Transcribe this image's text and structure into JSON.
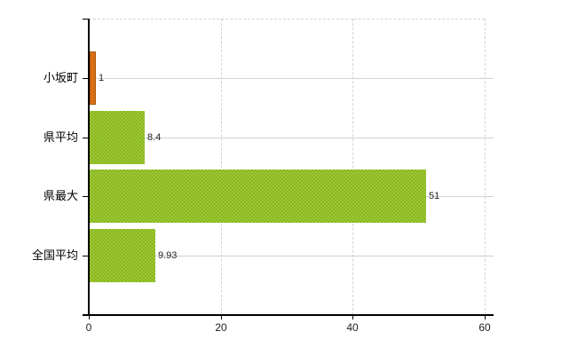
{
  "chart_data": {
    "type": "bar",
    "orientation": "horizontal",
    "title": "",
    "categories": [
      "小坂町",
      "県平均",
      "県最大",
      "全国平均"
    ],
    "series": [
      {
        "name": "value",
        "values": [
          1,
          8.4,
          51,
          9.93
        ]
      }
    ],
    "value_labels": [
      "1",
      "8.4",
      "51",
      "9.93"
    ],
    "bar_color_keys": [
      "orange",
      "green",
      "green",
      "green"
    ],
    "x_ticks": [
      0,
      20,
      40,
      60
    ],
    "x_tick_labels": [
      "0",
      "20",
      "40",
      "60"
    ],
    "xlim": [
      0,
      60
    ],
    "grid": true,
    "legend": false,
    "gridline_style": "vertical dashed at ticks, solid light line through each category center"
  },
  "colors": {
    "orange_fill": "#e67817",
    "orange_speckle": "#cc650d",
    "orange_border": "#a8570a",
    "green_fill": "#9ccb2e",
    "green_speckle": "#8ab427",
    "axis": "#000000",
    "category_gridline": "#ccd5cb",
    "dashed_gridline": "#d2d2d2",
    "label_text": "#1f1f1f",
    "background": "#ffffff"
  }
}
